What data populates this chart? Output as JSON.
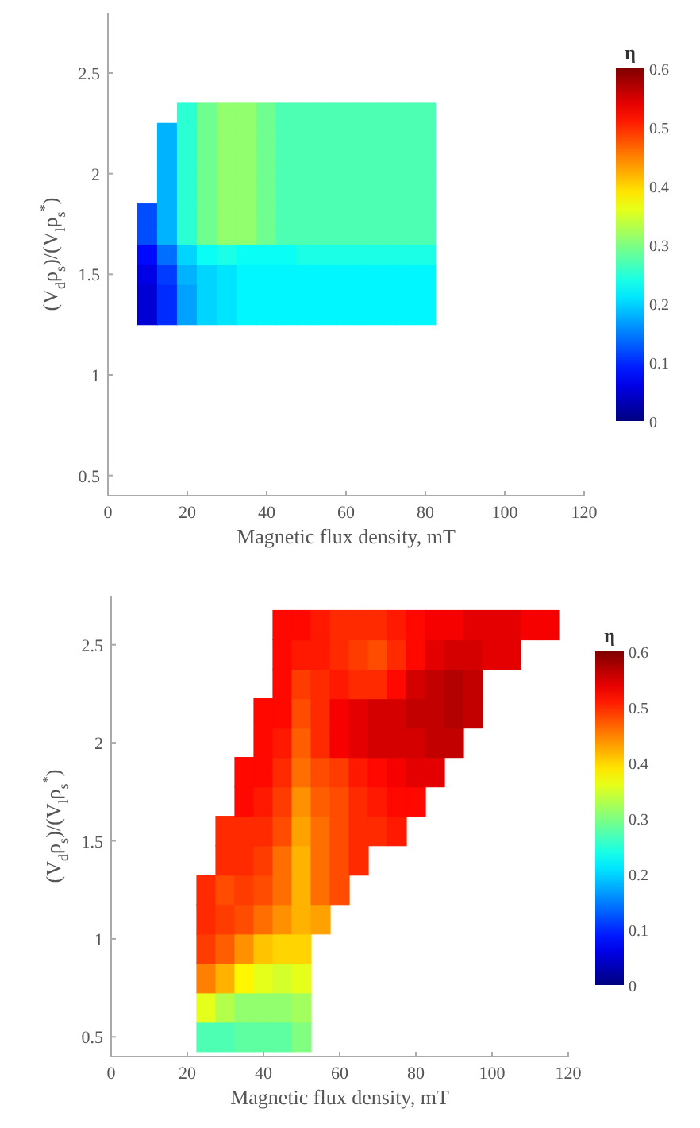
{
  "chart_data": [
    {
      "type": "scatter",
      "marker": "square",
      "xlabel": "Magnetic flux density, mT",
      "ylabel": "(V$_{d}$ρ$_{s}$)/(V$_{l}$ρ$_{s}$$^{*}$)",
      "clabel": "η",
      "xlim": [
        0,
        120
      ],
      "xticks": [
        0,
        20,
        40,
        60,
        80,
        100,
        120
      ],
      "ylim": [
        0.4,
        2.8
      ],
      "yticks": [
        0.5,
        1,
        1.5,
        2,
        2.5
      ],
      "clim": [
        0,
        0.6
      ],
      "cticks": [
        0,
        0.1,
        0.2,
        0.3,
        0.4,
        0.5,
        0.6
      ],
      "grid": false,
      "series": [
        {
          "x": [
            10,
            15,
            20,
            25,
            30,
            35,
            40,
            45,
            50,
            55,
            60,
            65,
            70,
            75,
            80,
            10,
            15,
            20,
            25,
            30,
            35,
            40,
            45,
            50,
            55,
            60,
            65,
            70,
            75,
            80,
            10,
            15,
            20,
            25,
            30,
            35,
            40,
            45,
            50,
            55,
            60,
            65,
            70,
            75,
            80,
            10,
            15,
            20,
            25,
            30,
            35,
            40,
            45,
            50,
            55,
            60,
            65,
            70,
            75,
            80,
            10,
            15,
            20,
            25,
            30,
            35,
            40,
            45,
            50,
            55,
            60,
            65,
            70,
            75,
            80,
            10,
            15,
            20,
            25,
            30,
            35,
            40,
            45,
            50,
            55,
            60,
            65,
            70,
            75,
            80,
            15,
            20,
            25,
            30,
            35,
            40,
            45,
            50,
            55,
            60,
            65,
            70,
            75,
            80,
            15,
            20,
            25,
            30,
            35,
            40,
            45,
            50,
            55,
            60,
            65,
            70,
            75,
            80,
            15,
            20,
            25,
            30,
            35,
            40,
            45,
            50,
            55,
            60,
            65,
            70,
            75,
            80,
            15,
            20,
            25,
            30,
            35,
            40,
            45,
            50,
            55,
            60,
            65,
            70,
            75,
            80,
            20,
            25,
            30,
            35,
            40,
            45,
            50,
            55,
            60,
            65,
            70,
            75,
            80
          ],
          "values": [
            1.3,
            1.3,
            1.3,
            1.3,
            1.3,
            1.3,
            1.3,
            1.3,
            1.3,
            1.3,
            1.3,
            1.3,
            1.3,
            1.3,
            1.3,
            1.4,
            1.4,
            1.4,
            1.4,
            1.4,
            1.4,
            1.4,
            1.4,
            1.4,
            1.4,
            1.4,
            1.4,
            1.4,
            1.4,
            1.4,
            1.5,
            1.5,
            1.5,
            1.5,
            1.5,
            1.5,
            1.5,
            1.5,
            1.5,
            1.5,
            1.5,
            1.5,
            1.5,
            1.5,
            1.5,
            1.6,
            1.6,
            1.6,
            1.6,
            1.6,
            1.6,
            1.6,
            1.6,
            1.6,
            1.6,
            1.6,
            1.6,
            1.6,
            1.6,
            1.6,
            1.7,
            1.7,
            1.7,
            1.7,
            1.7,
            1.7,
            1.7,
            1.7,
            1.7,
            1.7,
            1.7,
            1.7,
            1.7,
            1.7,
            1.7,
            1.8,
            1.8,
            1.8,
            1.8,
            1.8,
            1.8,
            1.8,
            1.8,
            1.8,
            1.8,
            1.8,
            1.8,
            1.8,
            1.8,
            1.8,
            1.9,
            1.9,
            1.9,
            1.9,
            1.9,
            1.9,
            1.9,
            1.9,
            1.9,
            1.9,
            1.9,
            1.9,
            1.9,
            1.9,
            2.0,
            2.0,
            2.0,
            2.0,
            2.0,
            2.0,
            2.0,
            2.0,
            2.0,
            2.0,
            2.0,
            2.0,
            2.0,
            2.0,
            2.1,
            2.1,
            2.1,
            2.1,
            2.1,
            2.1,
            2.1,
            2.1,
            2.1,
            2.1,
            2.1,
            2.1,
            2.1,
            2.1,
            2.2,
            2.2,
            2.2,
            2.2,
            2.2,
            2.2,
            2.2,
            2.2,
            2.2,
            2.2,
            2.2,
            2.2,
            2.2,
            2.2,
            2.3,
            2.3,
            2.3,
            2.3,
            2.3,
            2.3,
            2.3,
            2.3,
            2.3,
            2.3,
            2.3,
            2.3,
            2.3
          ],
          "cvalues": [
            0.05,
            0.1,
            0.17,
            0.2,
            0.21,
            0.22,
            0.22,
            0.22,
            0.22,
            0.22,
            0.22,
            0.22,
            0.22,
            0.22,
            0.22,
            0.05,
            0.1,
            0.17,
            0.2,
            0.21,
            0.22,
            0.22,
            0.22,
            0.22,
            0.22,
            0.22,
            0.22,
            0.22,
            0.22,
            0.22,
            0.06,
            0.11,
            0.18,
            0.2,
            0.21,
            0.22,
            0.22,
            0.22,
            0.22,
            0.22,
            0.22,
            0.22,
            0.22,
            0.22,
            0.22,
            0.08,
            0.14,
            0.2,
            0.23,
            0.24,
            0.23,
            0.23,
            0.23,
            0.24,
            0.24,
            0.24,
            0.24,
            0.24,
            0.24,
            0.24,
            0.12,
            0.18,
            0.25,
            0.29,
            0.31,
            0.31,
            0.29,
            0.27,
            0.27,
            0.27,
            0.27,
            0.27,
            0.27,
            0.27,
            0.27,
            0.12,
            0.18,
            0.25,
            0.29,
            0.31,
            0.31,
            0.29,
            0.27,
            0.27,
            0.27,
            0.27,
            0.27,
            0.27,
            0.27,
            0.27,
            0.18,
            0.25,
            0.29,
            0.31,
            0.31,
            0.29,
            0.27,
            0.27,
            0.27,
            0.27,
            0.27,
            0.27,
            0.27,
            0.27,
            0.18,
            0.25,
            0.29,
            0.31,
            0.31,
            0.29,
            0.27,
            0.27,
            0.27,
            0.27,
            0.27,
            0.27,
            0.27,
            0.27,
            0.18,
            0.25,
            0.29,
            0.31,
            0.31,
            0.29,
            0.27,
            0.27,
            0.27,
            0.27,
            0.27,
            0.27,
            0.27,
            0.27,
            0.18,
            0.25,
            0.29,
            0.31,
            0.31,
            0.29,
            0.27,
            0.27,
            0.27,
            0.27,
            0.27,
            0.27,
            0.27,
            0.27,
            0.25,
            0.29,
            0.31,
            0.31,
            0.29,
            0.27,
            0.27,
            0.27,
            0.27,
            0.27,
            0.27,
            0.27,
            0.27
          ]
        }
      ]
    },
    {
      "type": "scatter",
      "marker": "square",
      "xlabel": "Magnetic flux density, mT",
      "ylabel": "(V$_{d}$ρ$_{s}$)/(V$_{l}$ρ$_{s}$$^{*}$)",
      "clabel": "η",
      "xlim": [
        0,
        120
      ],
      "xticks": [
        0,
        20,
        40,
        60,
        80,
        100,
        120
      ],
      "ylim": [
        0.4,
        2.75
      ],
      "yticks": [
        0.5,
        1,
        1.5,
        2,
        2.5
      ],
      "clim": [
        0,
        0.6
      ],
      "cticks": [
        0,
        0.1,
        0.2,
        0.3,
        0.4,
        0.5,
        0.6
      ],
      "grid": false,
      "series": [
        {
          "x": [
            25,
            30,
            35,
            40,
            45,
            50,
            25,
            30,
            35,
            40,
            45,
            50,
            25,
            30,
            35,
            40,
            45,
            50,
            25,
            30,
            35,
            40,
            45,
            50,
            25,
            30,
            35,
            40,
            45,
            50,
            55,
            25,
            30,
            35,
            40,
            45,
            50,
            55,
            60,
            30,
            35,
            40,
            45,
            50,
            55,
            60,
            65,
            30,
            35,
            40,
            45,
            50,
            55,
            60,
            65,
            70,
            75,
            35,
            40,
            45,
            50,
            55,
            60,
            65,
            70,
            75,
            80,
            35,
            40,
            45,
            50,
            55,
            60,
            65,
            70,
            75,
            80,
            85,
            40,
            45,
            50,
            55,
            60,
            65,
            70,
            75,
            80,
            85,
            90,
            40,
            45,
            50,
            55,
            60,
            65,
            70,
            75,
            80,
            85,
            90,
            95,
            45,
            50,
            55,
            60,
            65,
            70,
            75,
            80,
            85,
            90,
            95,
            45,
            50,
            55,
            60,
            65,
            70,
            75,
            80,
            85,
            90,
            95,
            100,
            105,
            45,
            50,
            55,
            60,
            65,
            70,
            75,
            80,
            85,
            90,
            95,
            100,
            105,
            110,
            115
          ],
          "values": [
            0.5,
            0.5,
            0.5,
            0.5,
            0.5,
            0.5,
            0.65,
            0.65,
            0.65,
            0.65,
            0.65,
            0.65,
            0.8,
            0.8,
            0.8,
            0.8,
            0.8,
            0.8,
            0.95,
            0.95,
            0.95,
            0.95,
            0.95,
            0.95,
            1.1,
            1.1,
            1.1,
            1.1,
            1.1,
            1.1,
            1.1,
            1.25,
            1.25,
            1.25,
            1.25,
            1.25,
            1.25,
            1.25,
            1.25,
            1.4,
            1.4,
            1.4,
            1.4,
            1.4,
            1.4,
            1.4,
            1.4,
            1.55,
            1.55,
            1.55,
            1.55,
            1.55,
            1.55,
            1.55,
            1.55,
            1.55,
            1.55,
            1.7,
            1.7,
            1.7,
            1.7,
            1.7,
            1.7,
            1.7,
            1.7,
            1.7,
            1.7,
            1.85,
            1.85,
            1.85,
            1.85,
            1.85,
            1.85,
            1.85,
            1.85,
            1.85,
            1.85,
            1.85,
            2.0,
            2.0,
            2.0,
            2.0,
            2.0,
            2.0,
            2.0,
            2.0,
            2.0,
            2.0,
            2.0,
            2.15,
            2.15,
            2.15,
            2.15,
            2.15,
            2.15,
            2.15,
            2.15,
            2.15,
            2.15,
            2.15,
            2.15,
            2.3,
            2.3,
            2.3,
            2.3,
            2.3,
            2.3,
            2.3,
            2.3,
            2.3,
            2.3,
            2.3,
            2.45,
            2.45,
            2.45,
            2.45,
            2.45,
            2.45,
            2.45,
            2.45,
            2.45,
            2.45,
            2.45,
            2.45,
            2.45,
            2.6,
            2.6,
            2.6,
            2.6,
            2.6,
            2.6,
            2.6,
            2.6,
            2.6,
            2.6,
            2.6,
            2.6,
            2.6,
            2.6,
            2.6
          ],
          "cvalues": [
            0.27,
            0.27,
            0.28,
            0.28,
            0.28,
            0.3,
            0.36,
            0.33,
            0.31,
            0.31,
            0.31,
            0.32,
            0.45,
            0.42,
            0.38,
            0.36,
            0.35,
            0.36,
            0.49,
            0.47,
            0.44,
            0.41,
            0.4,
            0.4,
            0.5,
            0.49,
            0.48,
            0.46,
            0.44,
            0.42,
            0.43,
            0.5,
            0.48,
            0.49,
            0.48,
            0.46,
            0.42,
            0.46,
            0.48,
            0.5,
            0.5,
            0.49,
            0.46,
            0.42,
            0.46,
            0.48,
            0.5,
            0.5,
            0.5,
            0.5,
            0.48,
            0.43,
            0.46,
            0.48,
            0.5,
            0.5,
            0.51,
            0.52,
            0.51,
            0.49,
            0.44,
            0.47,
            0.48,
            0.5,
            0.51,
            0.52,
            0.52,
            0.52,
            0.52,
            0.5,
            0.46,
            0.48,
            0.49,
            0.51,
            0.52,
            0.53,
            0.54,
            0.54,
            0.52,
            0.51,
            0.47,
            0.5,
            0.53,
            0.54,
            0.55,
            0.55,
            0.55,
            0.56,
            0.56,
            0.52,
            0.52,
            0.48,
            0.5,
            0.53,
            0.54,
            0.55,
            0.55,
            0.56,
            0.56,
            0.57,
            0.56,
            0.52,
            0.49,
            0.5,
            0.51,
            0.5,
            0.5,
            0.52,
            0.55,
            0.56,
            0.57,
            0.56,
            0.52,
            0.51,
            0.51,
            0.5,
            0.49,
            0.48,
            0.5,
            0.52,
            0.54,
            0.55,
            0.55,
            0.54,
            0.54,
            0.52,
            0.52,
            0.51,
            0.5,
            0.5,
            0.5,
            0.51,
            0.52,
            0.53,
            0.53,
            0.54,
            0.54,
            0.54,
            0.53,
            0.53
          ]
        }
      ]
    }
  ]
}
